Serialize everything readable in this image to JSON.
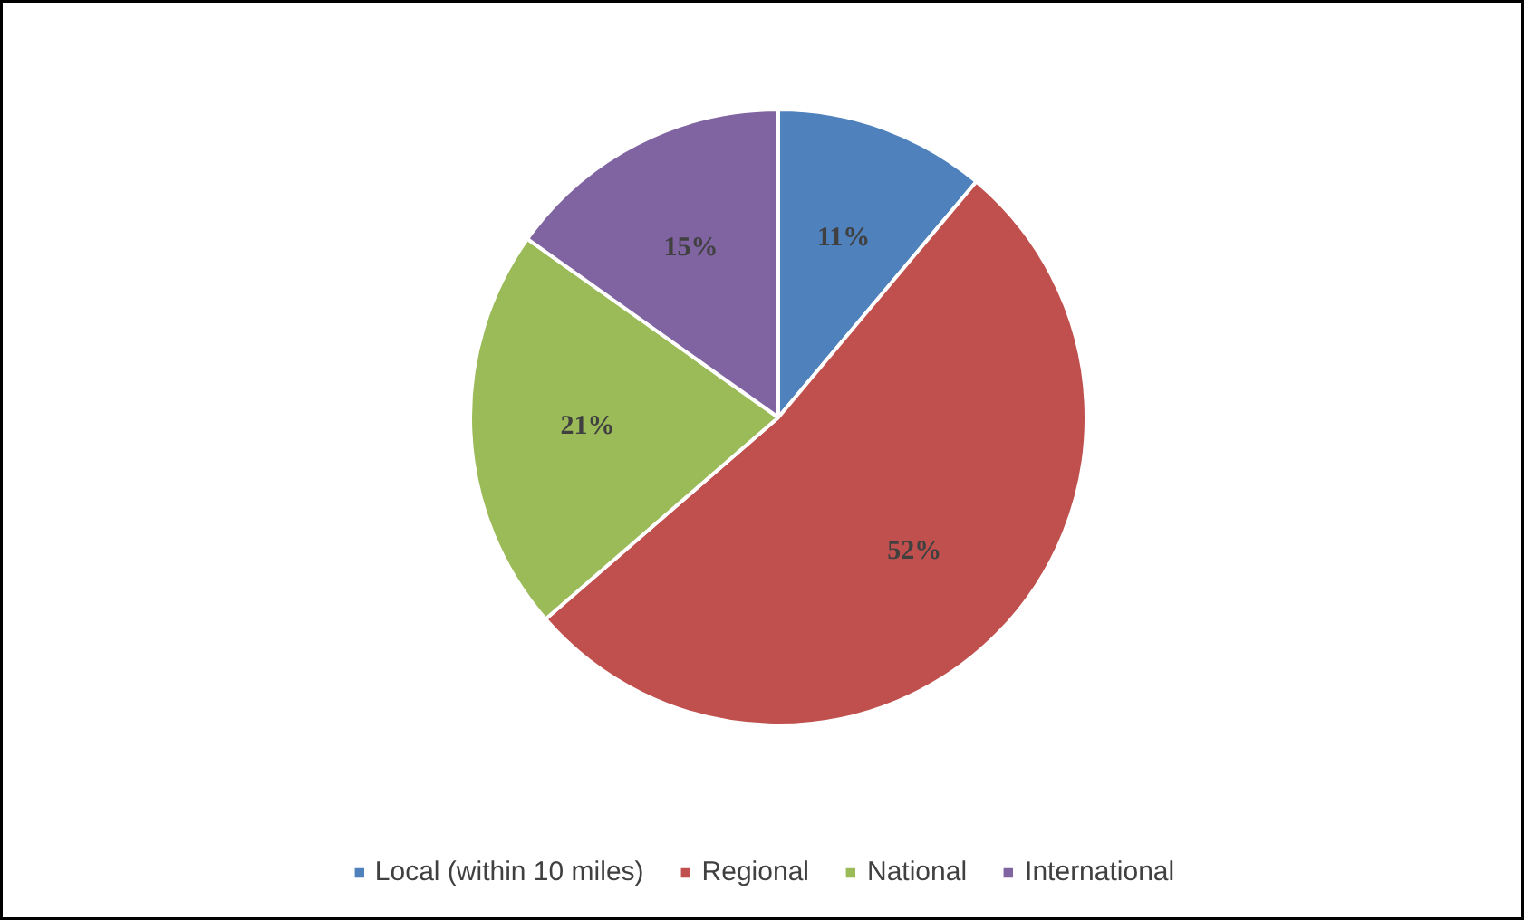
{
  "chart_data": {
    "type": "pie",
    "categories": [
      "Local (within 10 miles)",
      "Regional",
      "National",
      "International"
    ],
    "values": [
      11,
      52,
      21,
      15
    ],
    "colors": [
      "#4f81bd",
      "#c0504d",
      "#9bbb59",
      "#8064a2"
    ],
    "value_labels": [
      "11%",
      "52%",
      "21%",
      "15%"
    ],
    "legend": "bottom"
  }
}
